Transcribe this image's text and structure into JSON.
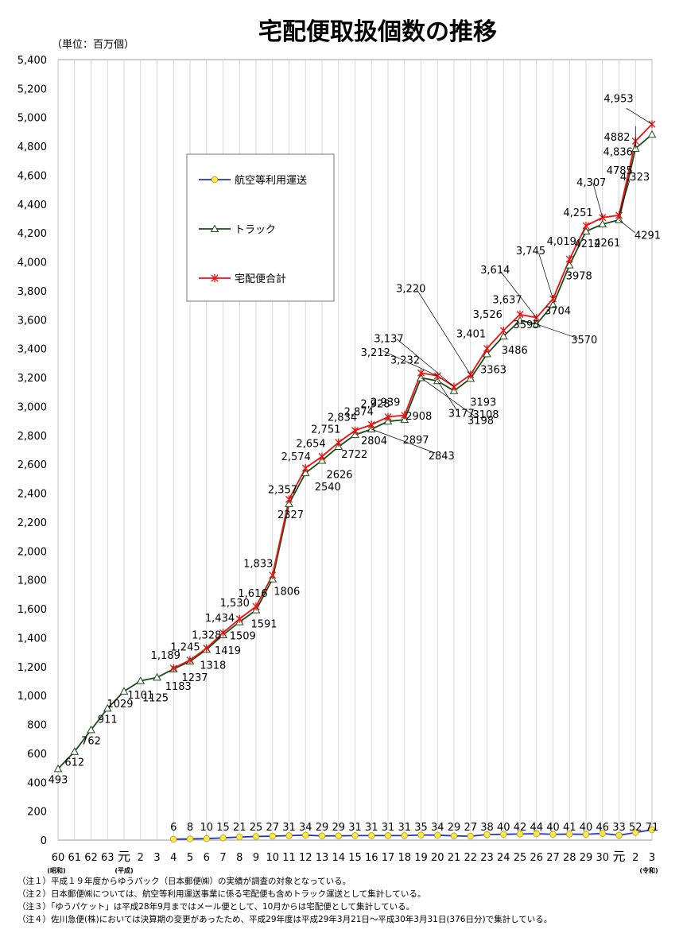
{
  "chart_data": {
    "type": "line",
    "title": "宅配便取扱個数の推移",
    "unit_label": "（単位：百万個）",
    "x_categories": [
      "60",
      "61",
      "62",
      "63",
      "元",
      "2",
      "3",
      "4",
      "5",
      "6",
      "7",
      "8",
      "9",
      "10",
      "11",
      "12",
      "13",
      "14",
      "15",
      "16",
      "17",
      "18",
      "19",
      "20",
      "21",
      "22",
      "23",
      "24",
      "25",
      "26",
      "27",
      "28",
      "29",
      "30",
      "元",
      "2",
      "3"
    ],
    "era_labels": {
      "showa": "(昭和)",
      "heisei": "(平成)",
      "reiwa": "(令和)",
      "fiscal_year": "(年度)"
    },
    "ylim": [
      0,
      5400
    ],
    "y_ticks": [
      "0",
      "200",
      "400",
      "600",
      "800",
      "1,000",
      "1,200",
      "1,400",
      "1,600",
      "1,800",
      "2,000",
      "2,200",
      "2,400",
      "2,600",
      "2,800",
      "3,000",
      "3,200",
      "3,400",
      "3,600",
      "3,800",
      "4,000",
      "4,200",
      "4,400",
      "4,600",
      "4,800",
      "5,000",
      "5,200",
      "5,400"
    ],
    "grid": "vertical",
    "legend_position": "upper-left inside plot",
    "series": [
      {
        "name": "航空等利用運送",
        "color": "#2233cc",
        "marker": "circle-yellow",
        "values": [
          null,
          null,
          null,
          null,
          null,
          null,
          null,
          6,
          8,
          10,
          15,
          21,
          25,
          27,
          31,
          34,
          29,
          29,
          31,
          31,
          31,
          31,
          35,
          34,
          29,
          27,
          38,
          40,
          42,
          44,
          40,
          41,
          40,
          46,
          33,
          52,
          71
        ],
        "labels": [
          null,
          null,
          null,
          null,
          null,
          null,
          null,
          "6",
          "8",
          "10",
          "15",
          "21",
          "25",
          "27",
          "31",
          "34",
          "29",
          "29",
          "31",
          "31",
          "31",
          "31",
          "35",
          "34",
          "29",
          "27",
          "38",
          "40",
          "42",
          "44",
          "40",
          "41",
          "40",
          "46",
          "33",
          "52",
          "71"
        ]
      },
      {
        "name": "トラック",
        "color": "#1a4d1a",
        "marker": "triangle",
        "values": [
          493,
          612,
          762,
          911,
          1029,
          1101,
          1125,
          1183,
          1237,
          1318,
          1419,
          1509,
          1591,
          1806,
          2327,
          2540,
          2626,
          2722,
          2804,
          2843,
          2897,
          2908,
          3198,
          3177,
          3108,
          3193,
          3363,
          3486,
          3595,
          3570,
          3704,
          3978,
          4212,
          4261,
          4291,
          4785,
          4882
        ],
        "labels": [
          "493",
          "612",
          "762",
          "911",
          "1029",
          "1101",
          "1125",
          "1183",
          "1237",
          "1318",
          "1419",
          "1509",
          "1591",
          "1806",
          "2327",
          "2540",
          "2626",
          "2722",
          "2804",
          "2843",
          "2897",
          "2908",
          "3198",
          "3177",
          "3108",
          "3193",
          "3363",
          "3486",
          "3595",
          "3570",
          "3704",
          "3978",
          "4212",
          "4261",
          "4291",
          "4785",
          "4882"
        ]
      },
      {
        "name": "宅配便合計",
        "color": "#ee1111",
        "marker": "asterisk",
        "values": [
          null,
          null,
          null,
          null,
          null,
          null,
          null,
          1189,
          1245,
          1328,
          1434,
          1530,
          1616,
          1833,
          2357,
          2574,
          2654,
          2751,
          2834,
          2874,
          2928,
          2939,
          3232,
          3212,
          3137,
          3220,
          3401,
          3526,
          3637,
          3614,
          3745,
          4019,
          4251,
          4307,
          4323,
          4836,
          4953
        ],
        "labels": [
          null,
          null,
          null,
          null,
          null,
          null,
          null,
          "1,189",
          "1,245",
          "1,328",
          "1,434",
          "1,530",
          "1,616",
          "1,833",
          "2,357",
          "2,574",
          "2,654",
          "2,751",
          "2,834",
          "2,874",
          "2,928",
          "2,939",
          "3,232",
          "3,212",
          "3,137",
          "3,220",
          "3,401",
          "3,526",
          "3,637",
          "3,614",
          "3,745",
          "4,019",
          "4,251",
          "4,307",
          "4,323",
          "4,836",
          "4,953"
        ]
      }
    ]
  },
  "notes": [
    "（注１）平成１９年度からゆうパック（日本郵便㈱）の実績が調査の対象となっている。",
    "（注２）日本郵便㈱については、航空等利用運送事業に係る宅配便も含めトラック運送として集計している。",
    "（注３）「ゆうパケット」は平成28年9月まではメール便として、10月からは宅配便として集計している。",
    "（注４）佐川急便(株)においては決算期の変更があったため、平成29年度は平成29年3月21日～平成30年3月31日(376日分)で集計している。"
  ]
}
